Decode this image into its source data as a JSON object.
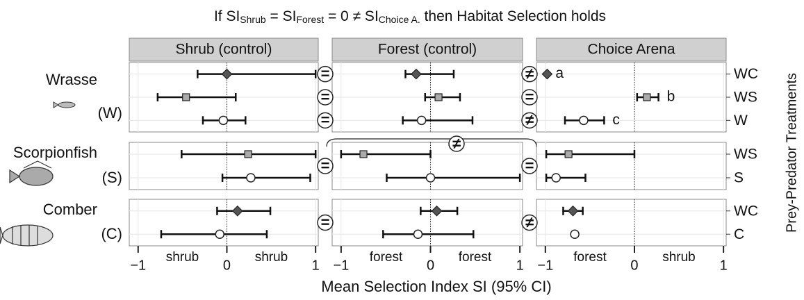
{
  "chart_data": {
    "type": "errorbar",
    "title_parts": [
      {
        "text": "If SI"
      },
      {
        "text": "Shrub",
        "sub": true
      },
      {
        "text": " = SI"
      },
      {
        "text": "Forest",
        "sub": true
      },
      {
        "text": " = 0 ≠ SI"
      },
      {
        "text": "Choice A.",
        "sub": true
      },
      {
        "text": " then Habitat Selection holds"
      }
    ],
    "x_label": "Mean Selection Index SI (95% CI)",
    "y2_label": "Prey-Predator Treatments",
    "columns": [
      "Shrub (control)",
      "Forest (control)",
      "Choice Arena"
    ],
    "x_annotations": [
      [
        "shrub",
        "shrub"
      ],
      [
        "forest",
        "forest"
      ],
      [
        "forest",
        "shrub"
      ]
    ],
    "xlim": [
      -1.1,
      1.03
    ],
    "xticks": [
      {
        "value": -1,
        "label": "−1"
      },
      0,
      1
    ],
    "reference_line": 0,
    "grid": true,
    "groups": [
      {
        "name": "Wrasse",
        "code": "(W)",
        "shrub_vs_forest": [
          "=",
          "=",
          "="
        ],
        "forest_vs_choice": [
          "≠",
          "=",
          "≠"
        ],
        "bracket": null,
        "treatments": [
          {
            "name": "WC",
            "shape": "diamond",
            "color": "#555555",
            "mean": [
              0.0,
              -0.16,
              -0.98
            ],
            "lower": [
              -0.33,
              -0.28,
              null
            ],
            "upper": [
              1.0,
              0.26,
              null
            ],
            "letters": [
              null,
              null,
              "a"
            ]
          },
          {
            "name": "WS",
            "shape": "square",
            "color": "#aaaaaa",
            "mean": [
              -0.46,
              0.09,
              0.14
            ],
            "lower": [
              -0.78,
              -0.06,
              0.03
            ],
            "upper": [
              0.1,
              0.33,
              0.27
            ],
            "letters": [
              null,
              null,
              "b"
            ]
          },
          {
            "name": "W",
            "shape": "circle",
            "color": "#ffffff",
            "mean": [
              -0.04,
              -0.1,
              -0.57
            ],
            "lower": [
              -0.27,
              -0.31,
              -0.78
            ],
            "upper": [
              0.21,
              0.47,
              -0.34
            ],
            "letters": [
              null,
              null,
              "c"
            ]
          }
        ]
      },
      {
        "name": "Scorpionfish",
        "code": "(S)",
        "shrub_vs_forest": [
          "="
        ],
        "forest_vs_choice": [
          "="
        ],
        "bracket": "≠",
        "treatments": [
          {
            "name": "WS",
            "shape": "square",
            "color": "#aaaaaa",
            "mean": [
              0.24,
              -0.75,
              -0.74
            ],
            "lower": [
              -0.51,
              -1.0,
              -0.99
            ],
            "upper": [
              1.0,
              0.0,
              0.0
            ]
          },
          {
            "name": "S",
            "shape": "circle",
            "color": "#ffffff",
            "mean": [
              0.27,
              0.0,
              -0.88
            ],
            "lower": [
              -0.05,
              -0.49,
              -0.99
            ],
            "upper": [
              0.94,
              1.0,
              -0.55
            ]
          }
        ]
      },
      {
        "name": "Comber",
        "code": "(C)",
        "shrub_vs_forest": [
          "="
        ],
        "forest_vs_choice": [
          "≠"
        ],
        "bracket": null,
        "treatments": [
          {
            "name": "WC",
            "shape": "diamond",
            "color": "#555555",
            "mean": [
              0.12,
              0.07,
              -0.69
            ],
            "lower": [
              -0.11,
              -0.11,
              -0.8
            ],
            "upper": [
              0.49,
              0.3,
              -0.58
            ]
          },
          {
            "name": "C",
            "shape": "circle",
            "color": "#ffffff",
            "mean": [
              -0.08,
              -0.14,
              -0.67
            ],
            "lower": [
              -0.74,
              -0.53,
              null
            ],
            "upper": [
              0.45,
              0.48,
              null
            ]
          }
        ]
      }
    ]
  }
}
